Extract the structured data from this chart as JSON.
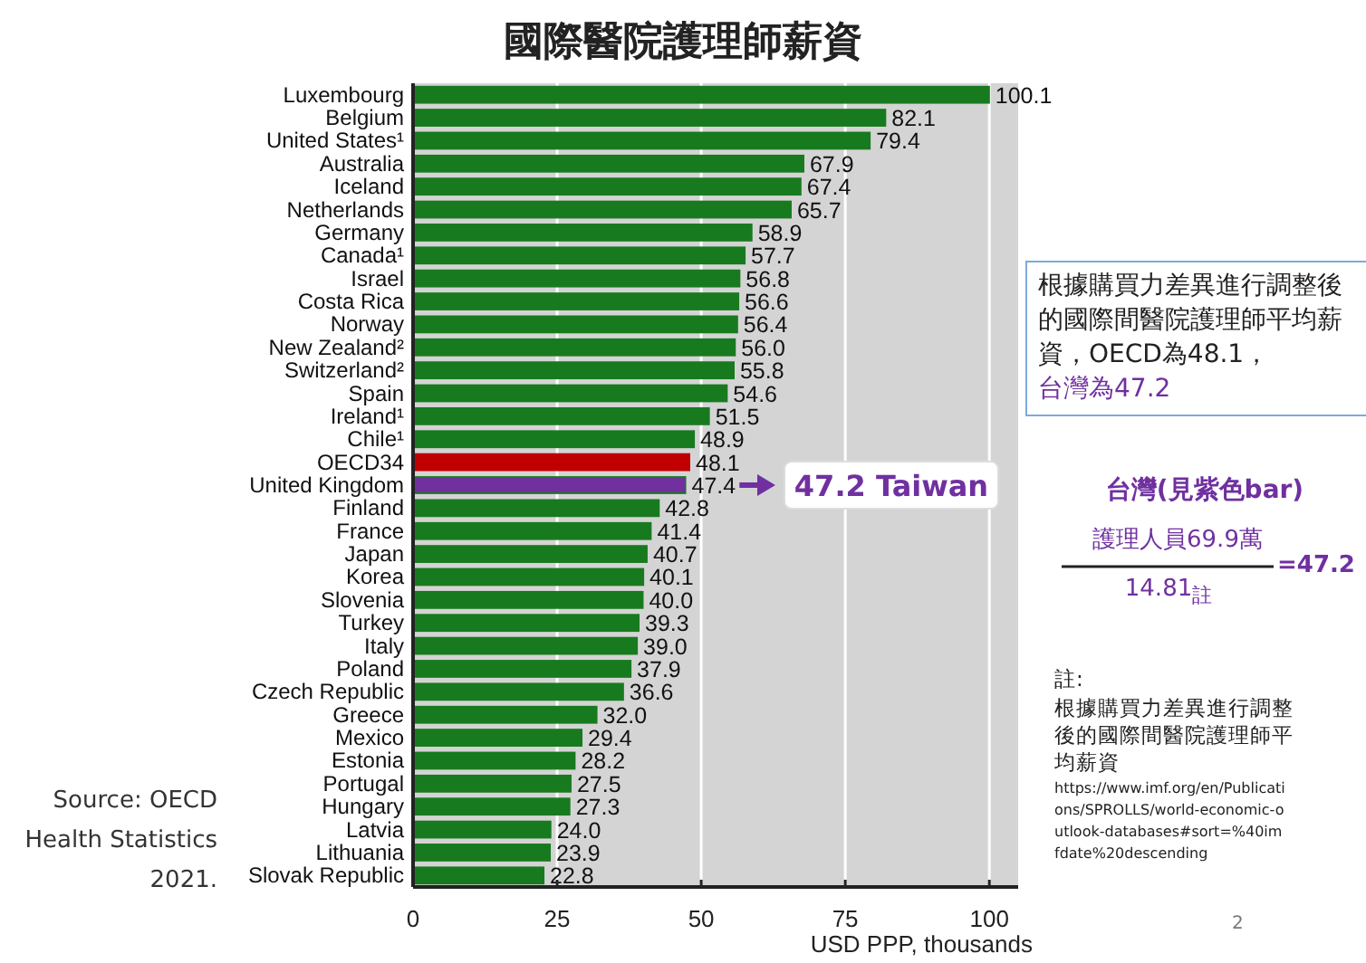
{
  "chart_data": {
    "type": "bar",
    "orientation": "horizontal",
    "title": "國際醫院護理師薪資",
    "xlabel": "USD PPP, thousands",
    "categories": [
      "Luxembourg",
      "Belgium",
      "United States¹",
      "Australia",
      "Iceland",
      "Netherlands",
      "Germany",
      "Canada¹",
      "Israel",
      "Costa Rica",
      "Norway",
      "New Zealand²",
      "Switzerland²",
      "Spain",
      "Ireland¹",
      "Chile¹",
      "OECD34",
      "United Kingdom",
      "Finland",
      "France",
      "Japan",
      "Korea",
      "Slovenia",
      "Turkey",
      "Italy",
      "Poland",
      "Czech Republic",
      "Greece",
      "Mexico",
      "Estonia",
      "Portugal",
      "Hungary",
      "Latvia",
      "Lithuania",
      "Slovak Republic"
    ],
    "series": [
      {
        "values": [
          100.1,
          82.1,
          79.4,
          67.9,
          67.4,
          65.7,
          58.9,
          57.7,
          56.8,
          56.6,
          56.4,
          56.0,
          55.8,
          54.6,
          51.5,
          48.9,
          48.1,
          47.4,
          42.8,
          41.4,
          40.7,
          40.1,
          40.0,
          39.3,
          39.0,
          37.9,
          36.6,
          32.0,
          29.4,
          28.2,
          27.5,
          27.3,
          24.0,
          23.9,
          22.8
        ],
        "colors": [
          "#187a1e",
          "#187a1e",
          "#187a1e",
          "#187a1e",
          "#187a1e",
          "#187a1e",
          "#187a1e",
          "#187a1e",
          "#187a1e",
          "#187a1e",
          "#187a1e",
          "#187a1e",
          "#187a1e",
          "#187a1e",
          "#187a1e",
          "#187a1e",
          "#c00000",
          "#187a1e",
          "#187a1e",
          "#187a1e",
          "#187a1e",
          "#187a1e",
          "#187a1e",
          "#187a1e",
          "#187a1e",
          "#187a1e",
          "#187a1e",
          "#187a1e",
          "#187a1e",
          "#187a1e",
          "#187a1e",
          "#187a1e",
          "#187a1e",
          "#187a1e",
          "#187a1e"
        ],
        "value_labels": [
          "100.1",
          "82.1",
          "79.4",
          "67.9",
          "67.4",
          "65.7",
          "58.9",
          "57.7",
          "56.8",
          "56.6",
          "56.4",
          "56.0",
          "55.8",
          "54.6",
          "51.5",
          "48.9",
          "48.1",
          "47.4",
          "42.8",
          "41.4",
          "40.7",
          "40.1",
          "40.0",
          "39.3",
          "39.0",
          "37.9",
          "36.6",
          "32.0",
          "29.4",
          "28.2",
          "27.5",
          "27.3",
          "24.0",
          "23.9",
          "22.8"
        ]
      },
      {
        "color": "#7030a0",
        "values": [
          null,
          null,
          null,
          null,
          null,
          null,
          null,
          null,
          null,
          null,
          null,
          null,
          null,
          null,
          null,
          null,
          null,
          47.2,
          null,
          null,
          null,
          null,
          null,
          null,
          null,
          null,
          null,
          null,
          null,
          null,
          null,
          null,
          null,
          null,
          null
        ]
      }
    ],
    "xlim": [
      0,
      105
    ],
    "xticks": [
      0,
      25,
      50,
      75,
      100
    ],
    "grid": "x",
    "annotations": [
      "47.2  Taiwan",
      "根據購買力差異進行調整後的國際間醫院護理師平均薪資，OECD為48.1，",
      "台灣為47.2",
      "台灣(見紫色bar)",
      "護理人員69.9萬",
      "14.81$_{註}$",
      "=47.2",
      "註:",
      "根據購買力差異進行調整後的國際間醫院護理師平均薪資",
      "https://www.imf.org/en/Publications/SPROLLS/world-economic-outlook-databases#sort=%40imfdate%20descending",
      "Source: OECD Health Statistics 2021.",
      "2"
    ]
  }
}
